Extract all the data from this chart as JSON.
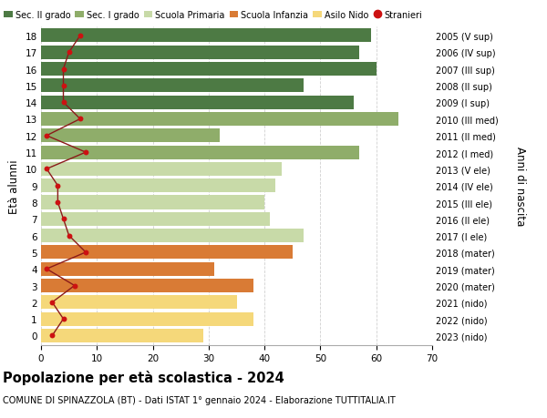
{
  "ages": [
    18,
    17,
    16,
    15,
    14,
    13,
    12,
    11,
    10,
    9,
    8,
    7,
    6,
    5,
    4,
    3,
    2,
    1,
    0
  ],
  "values": [
    59,
    57,
    60,
    47,
    56,
    64,
    32,
    57,
    43,
    42,
    40,
    41,
    47,
    45,
    31,
    38,
    35,
    38,
    29
  ],
  "stranieri": [
    7,
    5,
    4,
    4,
    4,
    7,
    1,
    8,
    1,
    3,
    3,
    4,
    5,
    8,
    1,
    6,
    2,
    4,
    2
  ],
  "right_labels": [
    "2005 (V sup)",
    "2006 (IV sup)",
    "2007 (III sup)",
    "2008 (II sup)",
    "2009 (I sup)",
    "2010 (III med)",
    "2011 (II med)",
    "2012 (I med)",
    "2013 (V ele)",
    "2014 (IV ele)",
    "2015 (III ele)",
    "2016 (II ele)",
    "2017 (I ele)",
    "2018 (mater)",
    "2019 (mater)",
    "2020 (mater)",
    "2021 (nido)",
    "2022 (nido)",
    "2023 (nido)"
  ],
  "colors": {
    "sec2": "#4d7a44",
    "sec1": "#8fad6a",
    "primaria": "#c8daa8",
    "infanzia": "#d97b35",
    "nido": "#f5d87a"
  },
  "legend_entries": [
    {
      "label": "Sec. II grado",
      "color": "#4d7a44",
      "type": "patch"
    },
    {
      "label": "Sec. I grado",
      "color": "#8fad6a",
      "type": "patch"
    },
    {
      "label": "Scuola Primaria",
      "color": "#c8daa8",
      "type": "patch"
    },
    {
      "label": "Scuola Infanzia",
      "color": "#d97b35",
      "type": "patch"
    },
    {
      "label": "Asilo Nido",
      "color": "#f5d87a",
      "type": "patch"
    },
    {
      "label": "Stranieri",
      "color": "#cc1111",
      "type": "dot"
    }
  ],
  "title": "Popolazione per età scolastica - 2024",
  "subtitle": "COMUNE DI SPINAZZOLA (BT) - Dati ISTAT 1° gennaio 2024 - Elaborazione TUTTITALIA.IT",
  "ylabel_left": "Età alunni",
  "ylabel_right": "Anni di nascita",
  "xlim": [
    0,
    70
  ],
  "xticks": [
    0,
    10,
    20,
    30,
    40,
    50,
    60,
    70
  ],
  "background_color": "#ffffff",
  "grid_color": "#d0d0d0",
  "stranieri_line_color": "#8b1a1a",
  "stranieri_dot_color": "#cc1111"
}
